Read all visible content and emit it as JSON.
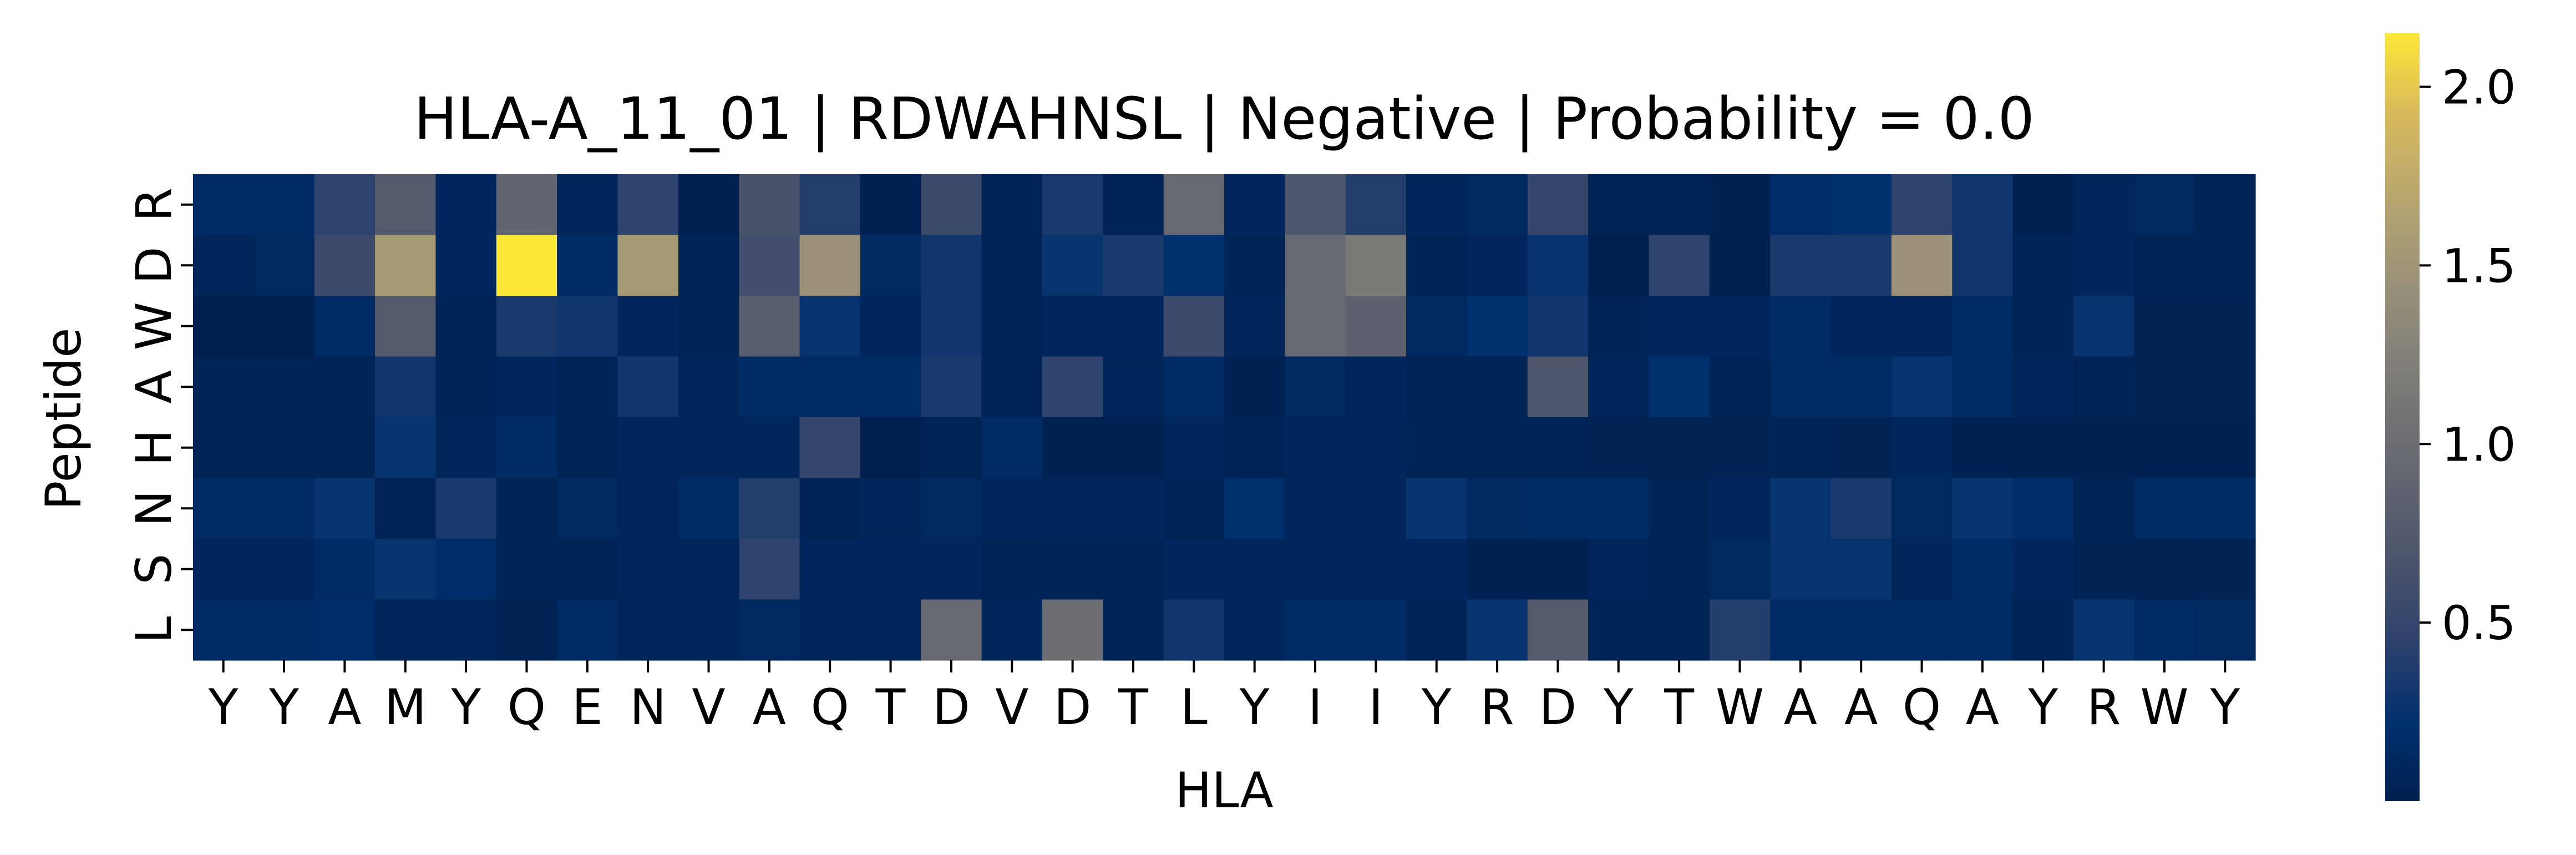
{
  "chart_data": {
    "type": "heatmap",
    "title": "HLA-A_11_01 | RDWAHNSL | Negative | Probability = 0.0",
    "xlabel": "HLA",
    "ylabel": "Peptide",
    "x_categories": [
      "Y",
      "Y",
      "A",
      "M",
      "Y",
      "Q",
      "E",
      "N",
      "V",
      "A",
      "Q",
      "T",
      "D",
      "V",
      "D",
      "T",
      "L",
      "Y",
      "I",
      "I",
      "Y",
      "R",
      "D",
      "Y",
      "T",
      "W",
      "A",
      "A",
      "Q",
      "A",
      "Y",
      "R",
      "W",
      "Y"
    ],
    "y_categories": [
      "R",
      "D",
      "W",
      "A",
      "H",
      "N",
      "S",
      "L"
    ],
    "colormap": "cividis",
    "colorbar": {
      "min": 0.0,
      "max": 2.15,
      "ticks": [
        0.5,
        1.0,
        1.5,
        2.0
      ],
      "tick_labels": [
        "0.5",
        "1.0",
        "1.5",
        "2.0"
      ]
    },
    "values": [
      [
        0.15,
        0.15,
        0.45,
        0.75,
        0.1,
        0.9,
        0.08,
        0.45,
        0.03,
        0.65,
        0.4,
        0.03,
        0.55,
        0.05,
        0.35,
        0.05,
        0.95,
        0.1,
        0.7,
        0.4,
        0.08,
        0.12,
        0.5,
        0.05,
        0.05,
        0.03,
        0.18,
        0.2,
        0.45,
        0.3,
        0.03,
        0.08,
        0.12,
        0.05
      ],
      [
        0.08,
        0.12,
        0.55,
        1.55,
        0.1,
        2.15,
        0.15,
        1.55,
        0.06,
        0.6,
        1.45,
        0.12,
        0.3,
        0.05,
        0.25,
        0.35,
        0.22,
        0.05,
        0.95,
        1.15,
        0.06,
        0.1,
        0.25,
        0.02,
        0.45,
        0.02,
        0.35,
        0.35,
        1.45,
        0.3,
        0.06,
        0.1,
        0.05,
        0.05
      ],
      [
        0.02,
        0.02,
        0.15,
        0.75,
        0.05,
        0.35,
        0.3,
        0.1,
        0.05,
        0.8,
        0.25,
        0.1,
        0.3,
        0.05,
        0.1,
        0.1,
        0.55,
        0.08,
        0.95,
        0.85,
        0.12,
        0.22,
        0.3,
        0.05,
        0.1,
        0.1,
        0.15,
        0.1,
        0.1,
        0.15,
        0.05,
        0.25,
        0.04,
        0.04
      ],
      [
        0.06,
        0.06,
        0.06,
        0.3,
        0.06,
        0.1,
        0.06,
        0.3,
        0.08,
        0.15,
        0.15,
        0.15,
        0.35,
        0.05,
        0.45,
        0.08,
        0.15,
        0.03,
        0.12,
        0.1,
        0.06,
        0.06,
        0.7,
        0.08,
        0.2,
        0.06,
        0.15,
        0.15,
        0.25,
        0.15,
        0.08,
        0.06,
        0.04,
        0.04
      ],
      [
        0.06,
        0.06,
        0.06,
        0.25,
        0.08,
        0.15,
        0.06,
        0.1,
        0.08,
        0.08,
        0.5,
        0.02,
        0.05,
        0.15,
        0.03,
        0.03,
        0.1,
        0.05,
        0.08,
        0.08,
        0.06,
        0.06,
        0.06,
        0.04,
        0.04,
        0.04,
        0.06,
        0.04,
        0.08,
        0.03,
        0.03,
        0.03,
        0.03,
        0.03
      ],
      [
        0.15,
        0.15,
        0.25,
        0.05,
        0.35,
        0.05,
        0.12,
        0.1,
        0.15,
        0.4,
        0.05,
        0.08,
        0.12,
        0.1,
        0.08,
        0.08,
        0.06,
        0.2,
        0.1,
        0.1,
        0.25,
        0.12,
        0.15,
        0.15,
        0.05,
        0.1,
        0.25,
        0.35,
        0.12,
        0.25,
        0.18,
        0.05,
        0.15,
        0.15
      ],
      [
        0.1,
        0.1,
        0.15,
        0.25,
        0.18,
        0.05,
        0.06,
        0.08,
        0.08,
        0.45,
        0.1,
        0.1,
        0.1,
        0.05,
        0.06,
        0.06,
        0.1,
        0.1,
        0.08,
        0.08,
        0.1,
        0.03,
        0.03,
        0.08,
        0.05,
        0.12,
        0.25,
        0.25,
        0.08,
        0.15,
        0.1,
        0.04,
        0.04,
        0.04
      ],
      [
        0.15,
        0.15,
        0.18,
        0.08,
        0.08,
        0.04,
        0.15,
        0.08,
        0.08,
        0.12,
        0.1,
        0.08,
        0.95,
        0.08,
        1.0,
        0.06,
        0.3,
        0.1,
        0.15,
        0.15,
        0.06,
        0.25,
        0.75,
        0.06,
        0.06,
        0.4,
        0.15,
        0.15,
        0.15,
        0.15,
        0.06,
        0.25,
        0.15,
        0.12
      ]
    ]
  }
}
